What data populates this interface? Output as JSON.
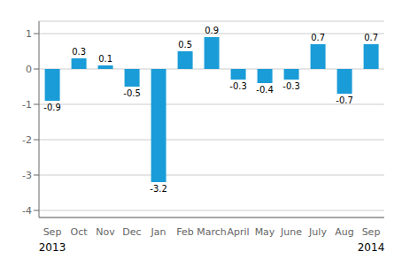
{
  "chart_data": {
    "type": "bar",
    "categories": [
      "Sep",
      "Oct",
      "Nov",
      "Dec",
      "Jan",
      "Feb",
      "March",
      "April",
      "May",
      "June",
      "July",
      "Aug",
      "Sep"
    ],
    "values": [
      -0.9,
      0.3,
      0.1,
      -0.5,
      -3.2,
      0.5,
      0.9,
      -0.3,
      -0.4,
      -0.3,
      0.7,
      -0.7,
      0.7
    ],
    "color": "#1a9cd8",
    "ylim": [
      -4.2,
      1.35
    ],
    "yticks": [
      -4,
      -3,
      -2,
      -1,
      0,
      1
    ],
    "grid": true,
    "data_labels": true,
    "annotations": [
      "2013",
      "2014"
    ]
  }
}
